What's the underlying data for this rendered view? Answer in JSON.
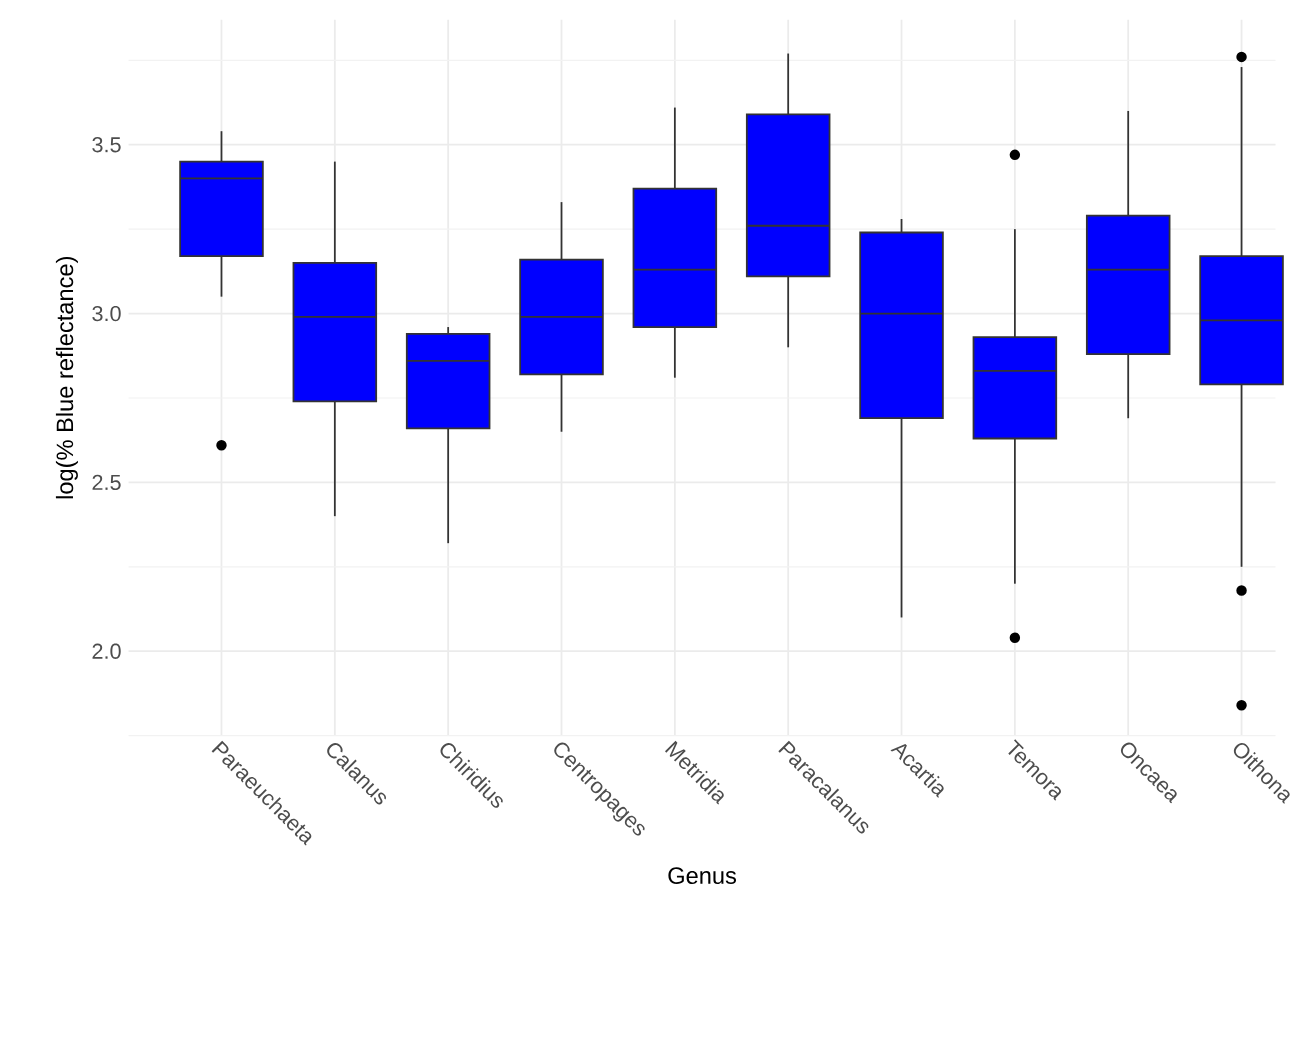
{
  "chart_data": {
    "type": "box",
    "xlabel": "Genus",
    "ylabel": "log(% Blue reflectance)",
    "categories": [
      "Paraeuchaeta",
      "Calanus",
      "Chiridius",
      "Centropages",
      "Metridia",
      "Paracalanus",
      "Acartia",
      "Temora",
      "Oncaea",
      "Oithona"
    ],
    "color": "#0000ff",
    "grid": true,
    "ylim": [
      1.75,
      3.87
    ],
    "yticks": [
      {
        "value": 2,
        "label": "2.0"
      },
      {
        "value": 2.5,
        "label": "2.5"
      },
      {
        "value": 3,
        "label": "3.0"
      },
      {
        "value": 3.5,
        "label": "3.5"
      }
    ],
    "boxes": [
      {
        "low": 3.05,
        "q1": 3.17,
        "median": 3.4,
        "q3": 3.45,
        "high": 3.54,
        "outliers": [
          2.61
        ]
      },
      {
        "low": 2.4,
        "q1": 2.74,
        "median": 2.99,
        "q3": 3.15,
        "high": 3.45
      },
      {
        "low": 2.32,
        "q1": 2.66,
        "median": 2.86,
        "q3": 2.94,
        "high": 2.96
      },
      {
        "low": 2.65,
        "q1": 2.82,
        "median": 2.99,
        "q3": 3.16,
        "high": 3.33
      },
      {
        "low": 2.81,
        "q1": 2.96,
        "median": 3.13,
        "q3": 3.37,
        "high": 3.61
      },
      {
        "low": 2.9,
        "q1": 3.11,
        "median": 3.26,
        "q3": 3.59,
        "high": 3.77
      },
      {
        "low": 2.1,
        "q1": 2.69,
        "median": 3.0,
        "q3": 3.24,
        "high": 3.28
      },
      {
        "low": 2.2,
        "q1": 2.63,
        "median": 2.83,
        "q3": 2.93,
        "high": 3.25,
        "outliers": [
          3.47,
          2.04
        ]
      },
      {
        "low": 2.69,
        "q1": 2.88,
        "median": 3.13,
        "q3": 3.29,
        "high": 3.6
      },
      {
        "low": 2.25,
        "q1": 2.79,
        "median": 2.98,
        "q3": 3.17,
        "high": 3.73,
        "outliers": [
          3.76,
          2.18,
          1.84
        ]
      }
    ]
  }
}
